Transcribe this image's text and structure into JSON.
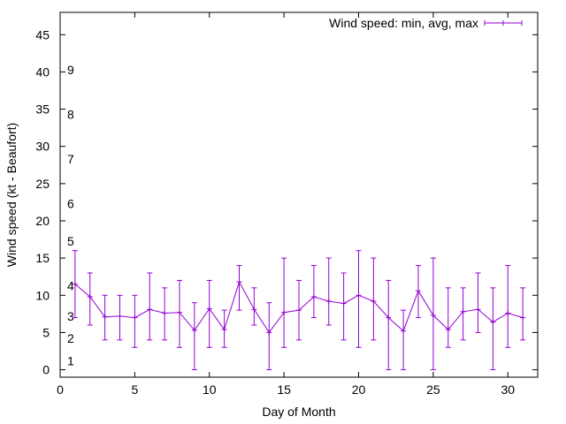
{
  "chart_data": {
    "type": "line",
    "title": "",
    "xlabel": "Day of Month",
    "ylabel": "Wind speed (kt - Beaufort)",
    "xlim": [
      0,
      32
    ],
    "ylim": [
      -1,
      48
    ],
    "x_ticks": [
      0,
      5,
      10,
      15,
      20,
      25,
      30
    ],
    "y_ticks": [
      0,
      5,
      10,
      15,
      20,
      25,
      30,
      35,
      40,
      45
    ],
    "grid": false,
    "legend_position": "top-right",
    "series": [
      {
        "name": "Wind speed: min, avg, max",
        "color": "#9400d3",
        "style": "errorbars-with-line",
        "x": [
          1,
          2,
          3,
          4,
          5,
          6,
          7,
          8,
          9,
          10,
          11,
          12,
          13,
          14,
          15,
          16,
          17,
          18,
          19,
          20,
          21,
          22,
          23,
          24,
          25,
          26,
          27,
          28,
          29,
          30,
          31
        ],
        "avg": [
          11.5,
          9.8,
          7.1,
          7.2,
          7.0,
          8.1,
          7.6,
          7.7,
          5.3,
          8.2,
          5.4,
          11.8,
          8.1,
          5.0,
          7.7,
          8.0,
          9.8,
          9.2,
          8.9,
          10.0,
          9.2,
          7.0,
          5.2,
          10.6,
          7.3,
          5.4,
          7.8,
          8.1,
          6.4,
          7.6,
          7.0
        ],
        "min": [
          7,
          6,
          4,
          4,
          3,
          4,
          4,
          3,
          0,
          3,
          3,
          8,
          6,
          0,
          3,
          4,
          7,
          6,
          4,
          3,
          4,
          0,
          0,
          7,
          0,
          3,
          4,
          5,
          0,
          3,
          4
        ],
        "max": [
          16,
          13,
          10,
          10,
          10,
          13,
          11,
          12,
          9,
          12,
          8,
          14,
          11,
          9,
          15,
          12,
          14,
          15,
          13,
          16,
          15,
          12,
          8,
          14,
          15,
          11,
          11,
          13,
          11,
          14,
          11
        ]
      }
    ],
    "annotations": [
      {
        "text": "1",
        "y": 1.2
      },
      {
        "text": "2",
        "y": 4.2
      },
      {
        "text": "3",
        "y": 7.2
      },
      {
        "text": "4",
        "y": 11.3
      },
      {
        "text": "5",
        "y": 17.3
      },
      {
        "text": "6",
        "y": 22.3
      },
      {
        "text": "7",
        "y": 28.3
      },
      {
        "text": "8",
        "y": 34.3
      },
      {
        "text": "9",
        "y": 40.3
      }
    ]
  }
}
